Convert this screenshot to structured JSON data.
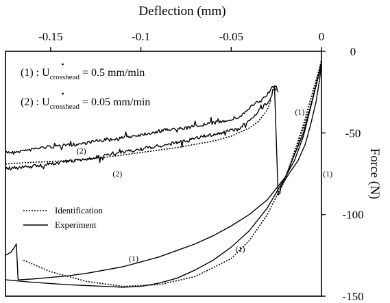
{
  "chart_data": {
    "type": "line",
    "xlabel": "Deflection (mm)",
    "ylabel": "Force (N)",
    "xlim": [
      -0.175,
      0
    ],
    "ylim": [
      -150,
      0
    ],
    "x_axis_position": "top",
    "y_axis_position": "right",
    "x_ticks": [
      {
        "value": -0.15,
        "label": "-0.15"
      },
      {
        "value": -0.1,
        "label": "-0.1"
      },
      {
        "value": -0.05,
        "label": "-0.05"
      },
      {
        "value": 0,
        "label": "0"
      }
    ],
    "y_ticks": [
      {
        "value": 0,
        "label": "0"
      },
      {
        "value": -50,
        "label": "-50"
      },
      {
        "value": -100,
        "label": "-100"
      },
      {
        "value": -150,
        "label": "-150"
      }
    ],
    "grid": false,
    "legend": {
      "placement": "lower-left",
      "entries": [
        {
          "label": "Identification",
          "style": "dotted"
        },
        {
          "label": "Experiment",
          "style": "solid"
        }
      ]
    },
    "annotations": {
      "line1": {
        "prefix": "(1) : U",
        "subscript": "crosshead",
        "suffix": " = 0.5 mm/min"
      },
      "line2": {
        "prefix": "(2) : U",
        "subscript": "crosshead",
        "suffix": " = 0.05 mm/min"
      }
    },
    "curve_labels": [
      {
        "text": "(2)",
        "x": -0.133,
        "y": -61
      },
      {
        "text": "(2)",
        "x": -0.113,
        "y": -75
      },
      {
        "text": "(1)",
        "x": -0.012,
        "y": -37
      },
      {
        "text": "(1)",
        "x": 0.0035,
        "y": -75
      },
      {
        "text": "(1)",
        "x": -0.104,
        "y": -127
      },
      {
        "text": "(1)",
        "x": -0.045,
        "y": -121
      }
    ],
    "series": [
      {
        "name": "Experiment",
        "style": "solid",
        "noisy": true,
        "x": [
          -0.175,
          -0.165,
          -0.155,
          -0.145,
          -0.135,
          -0.125,
          -0.115,
          -0.105,
          -0.095,
          -0.085,
          -0.075,
          -0.065,
          -0.055,
          -0.045,
          -0.038,
          -0.033,
          -0.029,
          -0.027,
          -0.026,
          -0.025,
          -0.024
        ],
        "y": [
          -62,
          -61,
          -59,
          -58,
          -57,
          -55,
          -54,
          -52,
          -50,
          -48,
          -47,
          -45,
          -43,
          -40,
          -33,
          -30,
          -25,
          -22,
          -21,
          -22,
          -25
        ]
      },
      {
        "name": "Experiment",
        "style": "solid",
        "noisy": true,
        "x": [
          -0.175,
          -0.165,
          -0.155,
          -0.145,
          -0.135,
          -0.125,
          -0.115,
          -0.105,
          -0.095,
          -0.085,
          -0.075,
          -0.065,
          -0.055,
          -0.045,
          -0.038,
          -0.033,
          -0.029,
          -0.027,
          -0.026,
          -0.025
        ],
        "y": [
          -72,
          -71,
          -70,
          -68,
          -67,
          -65,
          -63,
          -61,
          -59,
          -57,
          -55,
          -52,
          -50,
          -47,
          -40,
          -35,
          -30,
          -25,
          -22,
          -24
        ]
      },
      {
        "name": "Experiment",
        "style": "solid",
        "noisy": false,
        "x": [
          -0.026,
          -0.024,
          -0.023,
          -0.0225
        ],
        "y": [
          -22,
          -88,
          -87,
          -83
        ]
      },
      {
        "name": "Experiment",
        "style": "solid",
        "noisy": false,
        "x": [
          -0.0225,
          -0.018,
          -0.013,
          -0.009,
          -0.006,
          -0.003,
          -0.001,
          0
        ],
        "y": [
          -83,
          -75,
          -67,
          -57,
          -45,
          -31,
          -17,
          -7
        ]
      },
      {
        "name": "Experiment",
        "style": "solid",
        "noisy": false,
        "x": [
          0,
          -0.005,
          -0.01,
          -0.015,
          -0.02,
          -0.03,
          -0.04,
          -0.05,
          -0.06,
          -0.07,
          -0.08,
          -0.09,
          -0.1,
          -0.11,
          -0.12,
          -0.13,
          -0.14,
          -0.15,
          -0.16,
          -0.168
        ],
        "y": [
          -7,
          -30,
          -52,
          -67,
          -77,
          -91,
          -100,
          -107,
          -113,
          -118,
          -122,
          -126,
          -129,
          -132,
          -134,
          -136,
          -137.5,
          -138.5,
          -139.5,
          -140
        ]
      },
      {
        "name": "Experiment",
        "style": "solid",
        "noisy": false,
        "x": [
          -0.175,
          -0.172,
          -0.17,
          -0.169,
          -0.168
        ],
        "y": [
          -125,
          -123,
          -120,
          -118,
          -140
        ]
      },
      {
        "name": "Experiment",
        "style": "solid",
        "noisy": false,
        "x": [
          -0.175,
          -0.16,
          -0.14,
          -0.12,
          -0.11,
          -0.1,
          -0.09,
          -0.08,
          -0.07,
          -0.06,
          -0.05,
          -0.04,
          -0.03,
          -0.02,
          -0.01,
          -0.005,
          0
        ],
        "y": [
          -140,
          -141.5,
          -143,
          -144,
          -144.5,
          -144,
          -142,
          -139,
          -134,
          -128,
          -120,
          -110,
          -96,
          -77,
          -50,
          -30,
          -8
        ]
      },
      {
        "name": "Identification",
        "style": "dotted",
        "noisy": false,
        "x": [
          -0.175,
          -0.16,
          -0.14,
          -0.12,
          -0.1,
          -0.08,
          -0.06,
          -0.05,
          -0.04,
          -0.035,
          -0.03,
          -0.028
        ],
        "y": [
          -69,
          -68,
          -67,
          -65,
          -62,
          -59,
          -55,
          -52,
          -47,
          -43,
          -36,
          -30
        ]
      },
      {
        "name": "Identification",
        "style": "dotted",
        "noisy": false,
        "x": [
          -0.024,
          -0.02,
          -0.015,
          -0.01,
          -0.006,
          -0.003,
          0
        ],
        "y": [
          -88,
          -78,
          -63,
          -47,
          -33,
          -20,
          -5
        ]
      },
      {
        "name": "Identification",
        "style": "dotted",
        "noisy": false,
        "x": [
          -0.165,
          -0.15,
          -0.13,
          -0.11,
          -0.09,
          -0.07,
          -0.05,
          -0.04,
          -0.03,
          -0.02,
          -0.01,
          0
        ],
        "y": [
          -128,
          -135,
          -141,
          -144,
          -143,
          -138,
          -127,
          -116,
          -100,
          -78,
          -45,
          -6
        ]
      }
    ]
  }
}
